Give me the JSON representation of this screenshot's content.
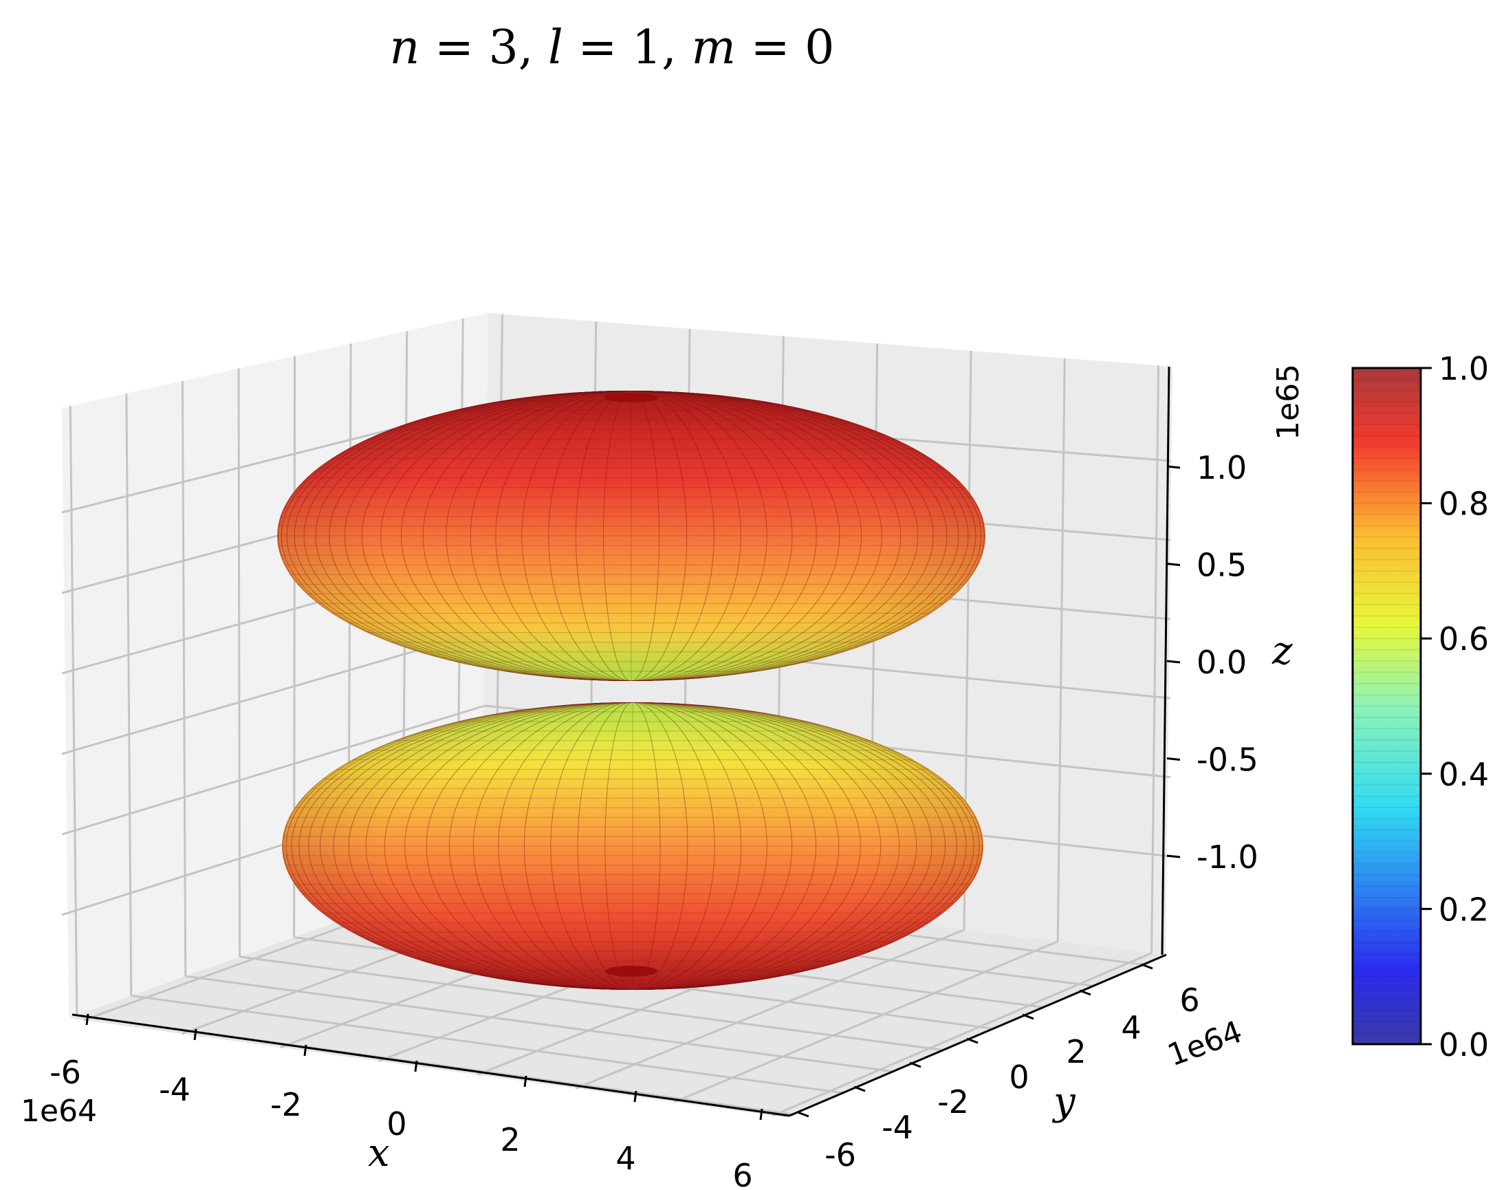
{
  "chart_data": {
    "type": "surface3d",
    "title": "n = 3, l = 1, m = 0",
    "x_axis": {
      "label": "x",
      "ticks": [
        "-6",
        "-4",
        "-2",
        "0",
        "2",
        "4",
        "6"
      ],
      "offset": "1e64",
      "range": [
        -6,
        6
      ]
    },
    "y_axis": {
      "label": "y",
      "ticks": [
        "-6",
        "-4",
        "-2",
        "0",
        "2",
        "4",
        "6"
      ],
      "offset": "1e64",
      "range": [
        -6,
        6
      ]
    },
    "z_axis": {
      "label": "z",
      "ticks": [
        "-1.0",
        "-0.5",
        "0.0",
        "0.5",
        "1.0"
      ],
      "offset": "1e65",
      "range": [
        -1.3,
        1.3
      ]
    },
    "lobes": [
      {
        "name": "",
        "z_center": 0.7,
        "x_radius": 5.6,
        "z_extent": 0.7
      },
      {
        "name": "",
        "z_center": -0.7,
        "x_radius": 5.6,
        "z_extent": 0.7
      }
    ],
    "colorbar": {
      "ticks": [
        "0.0",
        "0.2",
        "0.4",
        "0.6",
        "0.8",
        "1.0"
      ],
      "range": [
        0,
        1
      ],
      "colormap": "jet"
    },
    "grid": true,
    "colors": {
      "low": "#00007f",
      "mid": "#7fff7f",
      "high": "#7f0000"
    }
  }
}
